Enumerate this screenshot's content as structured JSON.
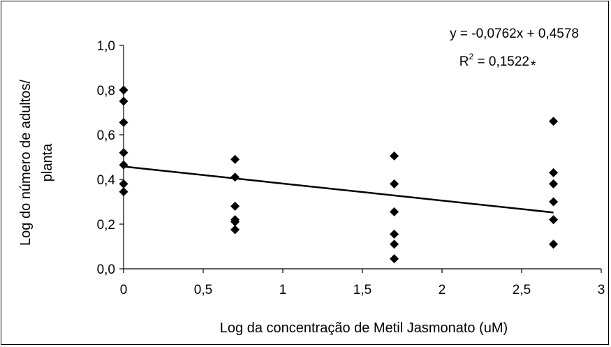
{
  "chart_data": {
    "type": "scatter",
    "xlabel": "Log da concentração de Metil Jasmonato (uM)",
    "ylabel_lines": [
      "Log do número de adultos/",
      "planta"
    ],
    "xlim": [
      0,
      3
    ],
    "ylim": [
      0,
      1.0
    ],
    "x_ticks": [
      "0",
      "0,5",
      "1",
      "1,5",
      "2",
      "2,5",
      "3"
    ],
    "y_ticks": [
      "0,0",
      "0,2",
      "0,4",
      "0,6",
      "0,8",
      "1,0"
    ],
    "points": [
      {
        "x": 0,
        "y": 0.8
      },
      {
        "x": 0,
        "y": 0.75
      },
      {
        "x": 0,
        "y": 0.655
      },
      {
        "x": 0,
        "y": 0.52
      },
      {
        "x": 0,
        "y": 0.465
      },
      {
        "x": 0,
        "y": 0.38
      },
      {
        "x": 0,
        "y": 0.345
      },
      {
        "x": 0.7,
        "y": 0.49
      },
      {
        "x": 0.7,
        "y": 0.41
      },
      {
        "x": 0.7,
        "y": 0.28
      },
      {
        "x": 0.7,
        "y": 0.22
      },
      {
        "x": 0.7,
        "y": 0.21
      },
      {
        "x": 0.7,
        "y": 0.175
      },
      {
        "x": 1.7,
        "y": 0.505
      },
      {
        "x": 1.7,
        "y": 0.38
      },
      {
        "x": 1.7,
        "y": 0.255
      },
      {
        "x": 1.7,
        "y": 0.155
      },
      {
        "x": 1.7,
        "y": 0.11
      },
      {
        "x": 1.7,
        "y": 0.045
      },
      {
        "x": 2.7,
        "y": 0.66
      },
      {
        "x": 2.7,
        "y": 0.43
      },
      {
        "x": 2.7,
        "y": 0.38
      },
      {
        "x": 2.7,
        "y": 0.3
      },
      {
        "x": 2.7,
        "y": 0.22
      },
      {
        "x": 2.7,
        "y": 0.11
      }
    ],
    "trendline": {
      "slope": -0.0762,
      "intercept": 0.4578,
      "x_range": [
        0,
        2.7
      ]
    },
    "equation": "y = -0,0762x + 0,4578",
    "r2_prefix": "R",
    "r2_sup": "2",
    "r2_value": " = 0,1522",
    "r2_mark": "*",
    "grid": false,
    "legend": "none"
  }
}
